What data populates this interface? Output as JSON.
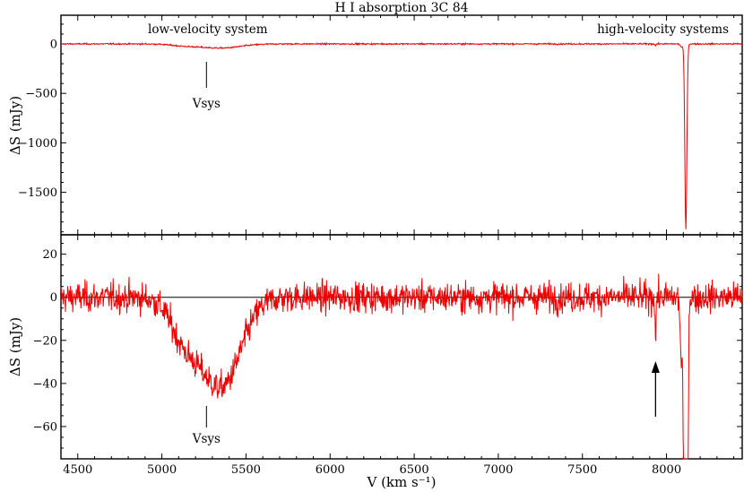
{
  "chart_data": {
    "type": "line",
    "title": "H I absorption 3C 84",
    "xlabel": "V (km s⁻¹)",
    "xlim": [
      4400,
      8450
    ],
    "xticks": [
      4500,
      5000,
      5500,
      6000,
      6500,
      7000,
      7500,
      8000
    ],
    "colors": {
      "spectrum": "#ee0000",
      "axes": "#000000"
    },
    "panels": [
      {
        "name": "top",
        "ylabel": "ΔS (mJy)",
        "ylim": [
          -1930,
          290
        ],
        "yticks": [
          0,
          -500,
          -1000,
          -1500
        ],
        "annotations": {
          "left": "low-velocity system",
          "right": "high-velocity systems",
          "vsys_label": "Vsys",
          "vsys_x": 5265
        }
      },
      {
        "name": "bottom",
        "ylabel": "ΔS (mJy)",
        "ylim": [
          -75,
          29
        ],
        "yticks": [
          20,
          0,
          -20,
          -40,
          -60
        ],
        "zero_line": true,
        "annotations": {
          "vsys_label": "Vsys",
          "vsys_x": 5265,
          "arrow_x": 7935
        }
      }
    ],
    "series": [
      {
        "name": "H I absorption spectrum",
        "features": [
          {
            "label": "low-velocity system",
            "center": 5350,
            "depth_mJy": -50,
            "range": [
              5000,
              5720
            ]
          },
          {
            "label": "high-velocity narrow line",
            "center": 7935,
            "depth_mJy": -22
          },
          {
            "label": "high-velocity deep line",
            "center": 8115,
            "depth_mJy": -1880
          }
        ],
        "noise_rms_mJy": 3.5
      }
    ]
  }
}
